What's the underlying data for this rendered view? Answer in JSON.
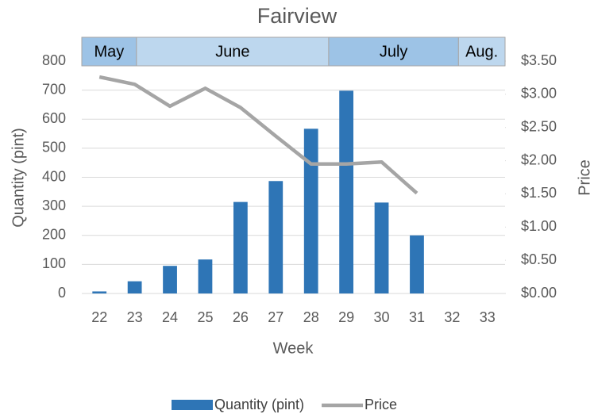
{
  "chart_data": {
    "type": "bar_line",
    "title": "Fairview",
    "months": [
      "May",
      "June",
      "July",
      "Aug."
    ],
    "categories": [
      22,
      23,
      24,
      25,
      26,
      27,
      28,
      29,
      30,
      31,
      32,
      33
    ],
    "xlabel": "Week",
    "ylabel": "Quantity (pint)",
    "y2label": "Price",
    "series": [
      {
        "name": "Quantity (pint)",
        "type": "bar",
        "color": "#2e75b6",
        "values": [
          7,
          42,
          95,
          117,
          315,
          387,
          567,
          698,
          313,
          200,
          null,
          null
        ]
      },
      {
        "name": "Price",
        "type": "line",
        "axis": "y2",
        "color": "#a5a5a5",
        "values": [
          3.26,
          3.15,
          2.82,
          3.09,
          2.8,
          2.37,
          1.95,
          1.95,
          1.98,
          1.51,
          null,
          null
        ]
      }
    ],
    "ylim": [
      0,
      800
    ],
    "yticks": [
      0,
      100,
      200,
      300,
      400,
      500,
      600,
      700,
      800
    ],
    "y2lim": [
      0,
      3.5
    ],
    "y2ticks": [
      {
        "value": 0,
        "label": "$0.00"
      },
      {
        "value": 0.5,
        "label": "$0.50"
      },
      {
        "value": 1,
        "label": "$1.00"
      },
      {
        "value": 1.5,
        "label": "$1.50"
      },
      {
        "value": 2,
        "label": "$2.00"
      },
      {
        "value": 2.5,
        "label": "$2.50"
      },
      {
        "value": 3,
        "label": "$3.00"
      },
      {
        "value": 3.5,
        "label": "$3.50"
      }
    ],
    "grid": true
  }
}
